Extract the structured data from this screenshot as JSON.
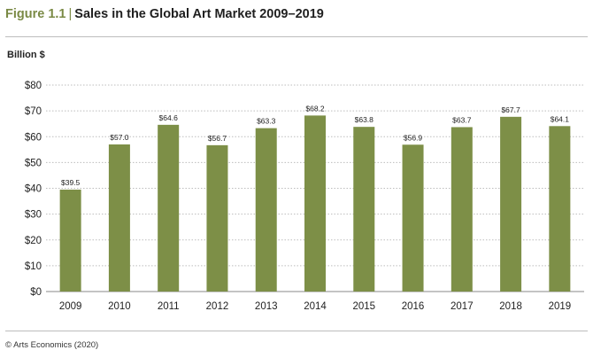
{
  "header": {
    "figure_label": "Figure 1.1",
    "separator": "|",
    "title": "Sales in the Global Art Market 2009–2019"
  },
  "colors": {
    "bar": "#7d8f47",
    "accent": "#7a8a45",
    "grid": "#bdbdbd"
  },
  "chart_data": {
    "type": "bar",
    "title": "Sales in the Global Art Market 2009–2019",
    "ylabel": "Billion $",
    "xlabel": "",
    "categories": [
      "2009",
      "2010",
      "2011",
      "2012",
      "2013",
      "2014",
      "2015",
      "2016",
      "2017",
      "2018",
      "2019"
    ],
    "values": [
      39.5,
      57.0,
      64.6,
      56.7,
      63.3,
      68.2,
      63.8,
      56.9,
      63.7,
      67.7,
      64.1
    ],
    "data_labels": [
      "$39.5",
      "$57.0",
      "$64.6",
      "$56.7",
      "$63.3",
      "$68.2",
      "$63.8",
      "$56.9",
      "$63.7",
      "$67.7",
      "$64.1"
    ],
    "ylim": [
      0,
      80
    ],
    "yticks": [
      0,
      10,
      20,
      30,
      40,
      50,
      60,
      70,
      80
    ],
    "ytick_labels": [
      "$0",
      "$10",
      "$20",
      "$30",
      "$40",
      "$50",
      "$60",
      "$70",
      "$80"
    ],
    "grid": "horizontal dotted",
    "legend": "none"
  },
  "footer": {
    "source": "© Arts Economics (2020)"
  }
}
